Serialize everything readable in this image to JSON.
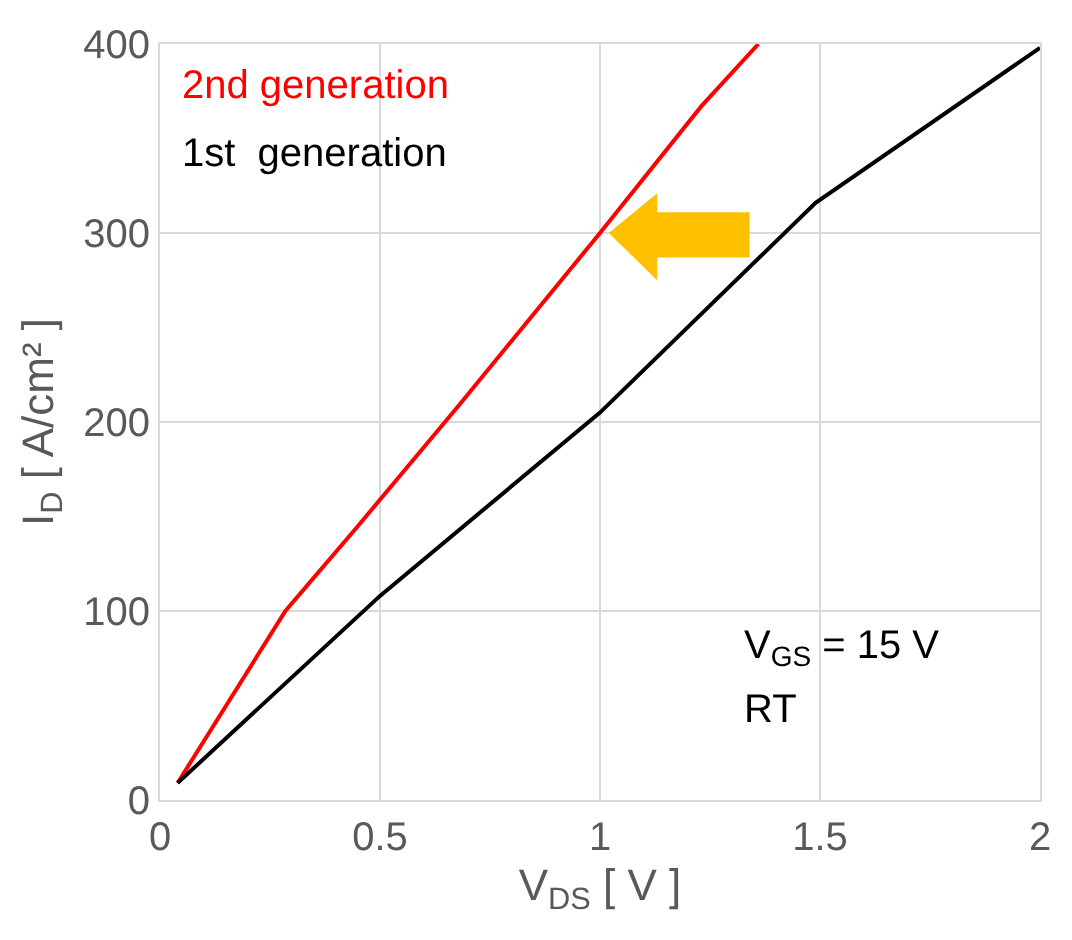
{
  "chart_data": {
    "type": "line",
    "xlabel": "V$_{DS}$ [ V ]",
    "ylabel": "I$_{D}$ [ A/cm² ]",
    "xlim": [
      0,
      2
    ],
    "xticks": [
      0,
      0.5,
      1,
      1.5,
      2
    ],
    "ylim": [
      0,
      400
    ],
    "yticks": [
      0,
      100,
      200,
      300,
      400
    ],
    "grid": true,
    "legend": false,
    "marker": "none",
    "line_style": "solid",
    "annotations": [
      "V$_{GS}$ = 15 V",
      "RT"
    ],
    "series": [
      {
        "name": "2nd generation",
        "color": "#ff0000",
        "x": [
          0.04,
          0.285,
          0.45,
          0.68,
          1.0,
          1.23,
          1.36
        ],
        "values": [
          9,
          100,
          145,
          209,
          300,
          367,
          400
        ]
      },
      {
        "name": "1st  generation",
        "color": "#000000",
        "x": [
          0.04,
          0.5,
          1.0,
          1.49,
          2.0
        ],
        "values": [
          9,
          108,
          205,
          316,
          398
        ]
      }
    ]
  }
}
